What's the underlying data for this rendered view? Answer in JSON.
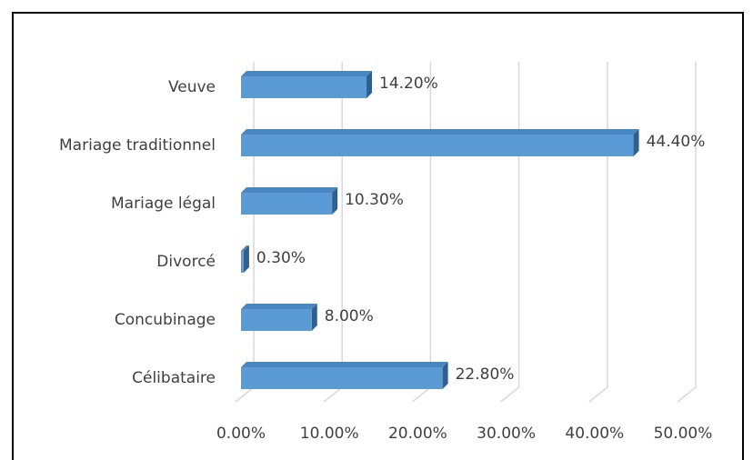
{
  "chart_data": {
    "type": "bar",
    "orientation": "horizontal",
    "categories": [
      "Veuve",
      "Mariage traditionnel",
      "Mariage légal",
      "Divorcé",
      "Concubinage",
      "Célibataire"
    ],
    "values": [
      14.2,
      44.4,
      10.3,
      0.3,
      8.0,
      22.8
    ],
    "value_labels": [
      "14.20%",
      "44.40%",
      "10.30%",
      "0.30%",
      "8.00%",
      "22.80%"
    ],
    "color": "#5b9bd5",
    "xlim": [
      0,
      50
    ],
    "xticks": [
      {
        "value": 0,
        "label": "0.00%"
      },
      {
        "value": 10,
        "label": "10.00%"
      },
      {
        "value": 20,
        "label": "20.00%"
      },
      {
        "value": 30,
        "label": "30.00%"
      },
      {
        "value": 40,
        "label": "40.00%"
      },
      {
        "value": 50,
        "label": "50.00%"
      }
    ],
    "grid": true
  }
}
